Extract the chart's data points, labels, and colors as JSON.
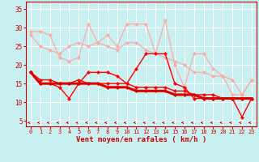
{
  "x": [
    0,
    1,
    2,
    3,
    4,
    5,
    6,
    7,
    8,
    9,
    10,
    11,
    12,
    13,
    14,
    15,
    16,
    17,
    18,
    19,
    20,
    21,
    22,
    23
  ],
  "line_pink1": [
    28,
    25,
    24,
    23,
    25,
    26,
    25,
    26,
    25,
    24,
    26,
    26,
    24,
    23,
    22,
    21,
    20,
    18,
    18,
    17,
    17,
    16,
    12,
    16
  ],
  "line_pink2": [
    29,
    29,
    28,
    22,
    21,
    22,
    31,
    26,
    28,
    25,
    31,
    31,
    31,
    23,
    32,
    20,
    14,
    23,
    23,
    19,
    17,
    12,
    12,
    16
  ],
  "line_red1": [
    18,
    15,
    15,
    14,
    11,
    15,
    18,
    18,
    18,
    17,
    15,
    19,
    23,
    23,
    23,
    15,
    14,
    11,
    11,
    11,
    11,
    11,
    6,
    11
  ],
  "line_red2": [
    18,
    15,
    15,
    15,
    15,
    15,
    15,
    15,
    14,
    14,
    14,
    13,
    13,
    13,
    13,
    12,
    12,
    12,
    11,
    11,
    11,
    11,
    11,
    11
  ],
  "line_red3": [
    18,
    16,
    16,
    15,
    15,
    16,
    15,
    15,
    15,
    15,
    15,
    14,
    14,
    14,
    14,
    13,
    13,
    12,
    12,
    12,
    11,
    11,
    11,
    11
  ],
  "bg_color": "#c8f0f0",
  "grid_color": "#ffffff",
  "pink_color": "#ffaaaa",
  "red1_color": "#ff0000",
  "red2_color": "#dd0000",
  "xlabel": "Vent moyen/en rafales ( km/h )",
  "yticks": [
    5,
    10,
    15,
    20,
    25,
    30,
    35
  ],
  "ylim": [
    3.5,
    37
  ],
  "xlim": [
    -0.5,
    23.5
  ]
}
